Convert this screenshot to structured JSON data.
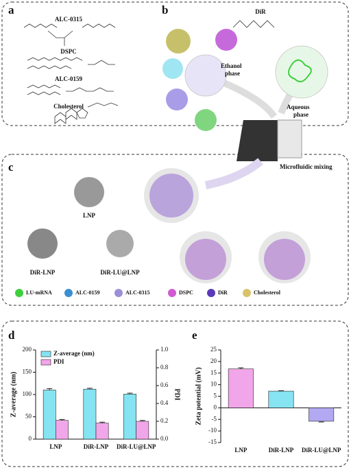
{
  "figure": {
    "panel_labels": [
      "a",
      "b",
      "c",
      "d",
      "e"
    ],
    "lipids": [
      "ALC-0315",
      "DSPC",
      "ALC-0159",
      "Cholesterol"
    ],
    "dye": "DiR",
    "ethanol_phase": [
      "Ethanol",
      "phase"
    ],
    "aqueous_phase": [
      "Aqueous",
      "phase"
    ],
    "mixing": "Microfluidic mixing",
    "tem_labels": [
      "LNP",
      "DiR-LNP",
      "DiR-LU@LNP"
    ],
    "legend": [
      "LU-mRNA",
      "ALC-0159",
      "ALC-0315",
      "DSPC",
      "DiR",
      "Cholesterol"
    ]
  },
  "chart_data": [
    {
      "type": "bar",
      "categories": [
        "LNP",
        "DiR-LNP",
        "DiR-LU@LNP"
      ],
      "ylabel": "Z-average (nm)",
      "y2label": "PDI",
      "ylim": [
        0,
        200
      ],
      "yticks": [
        0,
        50,
        100,
        150,
        200
      ],
      "y2lim": [
        0,
        1
      ],
      "y2ticks": [
        {
          "value": 0,
          "label": "0.0"
        },
        {
          "value": 0.2,
          "label": "0.2"
        },
        {
          "value": 0.4,
          "label": "0.4"
        },
        {
          "value": 0.6,
          "label": "0.6"
        },
        {
          "value": 0.8,
          "label": "0.8"
        },
        {
          "value": 1,
          "label": "1.0"
        }
      ],
      "legend": "top-left",
      "series": [
        {
          "name": "Z-average (nm)",
          "color": "#86e3f2",
          "values": [
            110,
            112,
            101
          ],
          "errors": [
            3,
            2,
            2
          ]
        },
        {
          "name": "PDI",
          "color": "#f2a6ea",
          "axis": "y2",
          "values": [
            0.21,
            0.18,
            0.2
          ],
          "errors": [
            0.01,
            0.01,
            0.01
          ]
        }
      ]
    },
    {
      "type": "bar",
      "categories": [
        "LNP",
        "DiR-LNP",
        "DiR-LU@LNP"
      ],
      "ylabel": "Zeta potential (mV)",
      "ylim": [
        -15,
        25
      ],
      "yticks": [
        -15,
        -10,
        -5,
        0,
        5,
        10,
        15,
        20,
        25
      ],
      "series": [
        {
          "colors": [
            "#f2a6ea",
            "#86e3f2",
            "#b3a9f2"
          ],
          "values": [
            16.8,
            7.2,
            -5.8
          ],
          "errors": [
            0.5,
            0.2,
            0.3
          ]
        }
      ]
    }
  ]
}
